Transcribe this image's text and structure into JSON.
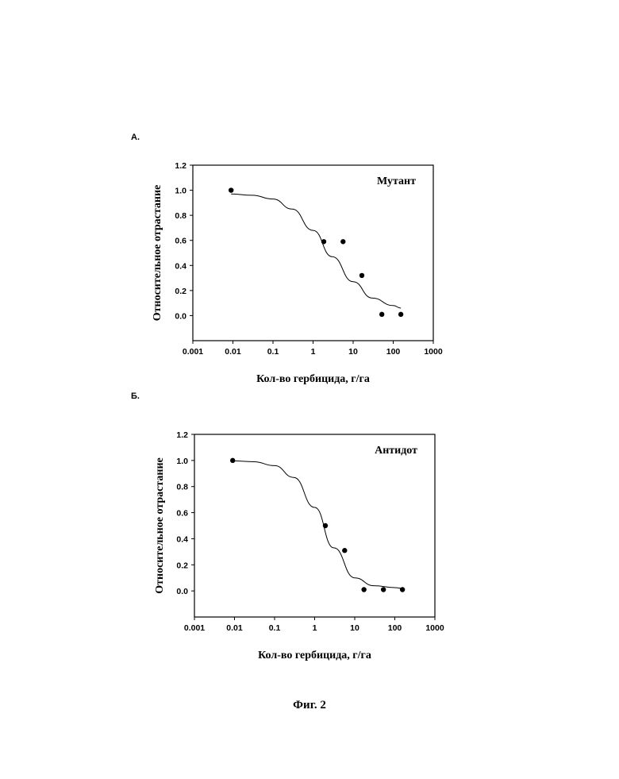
{
  "panels": [
    {
      "label": "А.",
      "legend": "Мутант"
    },
    {
      "label": "Б.",
      "legend": "Антидот"
    }
  ],
  "caption": "Фиг. 2",
  "chart_data": [
    {
      "type": "scatter",
      "title": "",
      "legend": "Мутант",
      "xlabel": "Кол-во гербицида, г/га",
      "ylabel": "Относительное отрастание",
      "xscale": "log",
      "xlim": [
        0.001,
        1000
      ],
      "ylim": [
        -0.2,
        1.2
      ],
      "xticks": [
        "0.001",
        "0.01",
        "0.1",
        "1",
        "10",
        "100",
        "1000"
      ],
      "yticks": [
        "0.0",
        "0.2",
        "0.4",
        "0.6",
        "0.8",
        "1.0",
        "1.2"
      ],
      "points": {
        "x": [
          0.009,
          1.85,
          5.6,
          16.5,
          52,
          155
        ],
        "y": [
          1.0,
          0.59,
          0.59,
          0.32,
          0.01,
          0.01
        ]
      },
      "fit_curve": {
        "x": [
          0.009,
          0.03,
          0.1,
          0.3,
          1,
          3,
          10,
          30,
          100,
          155
        ],
        "y": [
          0.97,
          0.96,
          0.93,
          0.85,
          0.68,
          0.47,
          0.27,
          0.14,
          0.08,
          0.06
        ]
      }
    },
    {
      "type": "scatter",
      "title": "",
      "legend": "Антидот",
      "xlabel": "Кол-во гербицида, г/га",
      "ylabel": "Относительное отрастание",
      "xscale": "log",
      "xlim": [
        0.001,
        1000
      ],
      "ylim": [
        -0.2,
        1.2
      ],
      "xticks": [
        "0.001",
        "0.01",
        "0.1",
        "1",
        "10",
        "100",
        "1000"
      ],
      "yticks": [
        "0.0",
        "0.2",
        "0.4",
        "0.6",
        "0.8",
        "1.0",
        "1.2"
      ],
      "points": {
        "x": [
          0.009,
          1.85,
          5.6,
          17,
          52,
          155
        ],
        "y": [
          1.0,
          0.5,
          0.31,
          0.01,
          0.01,
          0.01
        ]
      },
      "fit_curve": {
        "x": [
          0.009,
          0.03,
          0.1,
          0.3,
          1,
          3,
          10,
          30,
          100,
          155
        ],
        "y": [
          0.997,
          0.99,
          0.96,
          0.87,
          0.64,
          0.33,
          0.1,
          0.04,
          0.025,
          0.02
        ]
      }
    }
  ]
}
